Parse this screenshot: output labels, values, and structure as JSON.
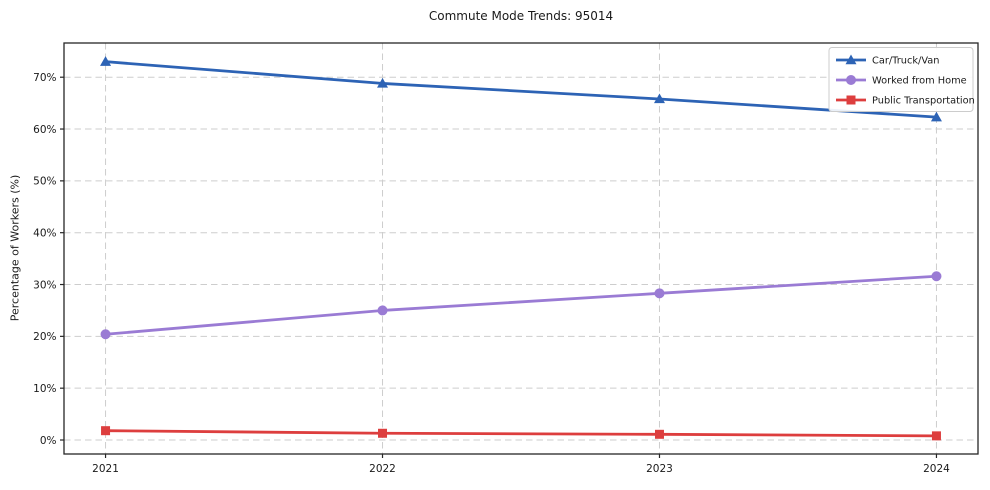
{
  "title": "Commute Mode Trends: 95014",
  "chart_data": {
    "type": "line",
    "title": "Commute Mode Trends: 95014",
    "xlabel": "",
    "ylabel": "Percentage of Workers (%)",
    "x": [
      2021,
      2022,
      2023,
      2024
    ],
    "x_tick_labels": [
      "2021",
      "2022",
      "2023",
      "2024"
    ],
    "y_ticks": [
      0,
      10,
      20,
      30,
      40,
      50,
      60,
      70
    ],
    "y_tick_labels": [
      "0%",
      "10%",
      "20%",
      "30%",
      "40%",
      "50%",
      "60%",
      "70%"
    ],
    "xlim": [
      2020.85,
      2024.15
    ],
    "ylim": [
      -2.7,
      76.6
    ],
    "grid": true,
    "grid_style": "dashed",
    "legend_position": "upper right",
    "series": [
      {
        "name": "Car/Truck/Van",
        "values": [
          73.0,
          68.8,
          65.8,
          62.3
        ],
        "color": "#2d63b5",
        "marker": "triangle"
      },
      {
        "name": "Worked from Home",
        "values": [
          20.4,
          25.0,
          28.3,
          31.6
        ],
        "color": "#9a7bd4",
        "marker": "circle"
      },
      {
        "name": "Public Transportation",
        "values": [
          1.8,
          1.3,
          1.1,
          0.8
        ],
        "color": "#dd3e3e",
        "marker": "square"
      }
    ]
  }
}
